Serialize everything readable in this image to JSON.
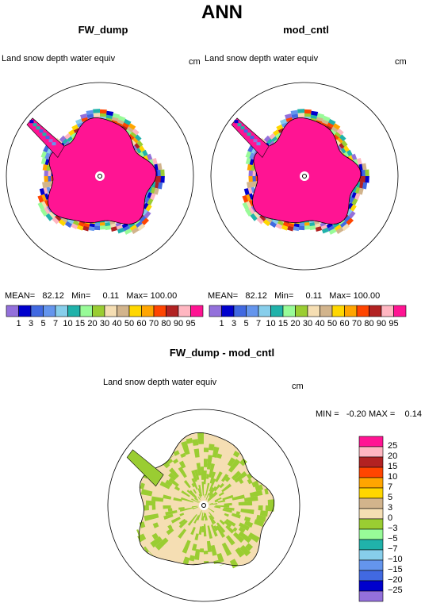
{
  "title": "ANN",
  "panels": [
    {
      "title": "FW_dump",
      "variable": "Land snow depth water equiv",
      "units": "cm",
      "mean_label": "MEAN=",
      "mean": "82.12",
      "min_label": "Min=",
      "min": "0.11",
      "max_label": "Max=",
      "max": "100.00"
    },
    {
      "title": "mod_cntl",
      "variable": "Land snow depth water equiv",
      "units": "cm",
      "mean_label": "MEAN=",
      "mean": "82.12",
      "min_label": "Min=",
      "min": "0.11",
      "max_label": "Max=",
      "max": "100.00"
    }
  ],
  "diff_panel": {
    "title": "FW_dump - mod_cntl",
    "variable": "Land snow depth water equiv",
    "units": "cm",
    "min_label": "MIN =",
    "min": "-0.20",
    "max_label": "MAX =",
    "max": "0.14"
  },
  "chart_data": [
    {
      "type": "heatmap",
      "projection": "south-polar-stereographic",
      "title": "FW_dump",
      "description_fields": {
        "mean": 82.12,
        "min": 0.11,
        "max": 100.0
      },
      "colorbar_levels": [
        "1",
        "3",
        "5",
        "7",
        "10",
        "15",
        "20",
        "30",
        "40",
        "50",
        "60",
        "70",
        "80",
        "90",
        "95"
      ],
      "colorbar_colors": [
        "#9370db",
        "#0000cd",
        "#4169e1",
        "#6495ed",
        "#87ceeb",
        "#20b2aa",
        "#98fb98",
        "#9acd32",
        "#f5deb3",
        "#d2b48c",
        "#ffd700",
        "#ffa500",
        "#ff4500",
        "#b22222",
        "#ffb6c1",
        "#ff1493"
      ]
    },
    {
      "type": "heatmap",
      "projection": "south-polar-stereographic",
      "title": "mod_cntl",
      "description_fields": {
        "mean": 82.12,
        "min": 0.11,
        "max": 100.0
      },
      "colorbar_levels": [
        "1",
        "3",
        "5",
        "7",
        "10",
        "15",
        "20",
        "30",
        "40",
        "50",
        "60",
        "70",
        "80",
        "90",
        "95"
      ],
      "colorbar_colors": [
        "#9370db",
        "#0000cd",
        "#4169e1",
        "#6495ed",
        "#87ceeb",
        "#20b2aa",
        "#98fb98",
        "#9acd32",
        "#f5deb3",
        "#d2b48c",
        "#ffd700",
        "#ffa500",
        "#ff4500",
        "#b22222",
        "#ffb6c1",
        "#ff1493"
      ]
    },
    {
      "type": "heatmap",
      "projection": "south-polar-stereographic",
      "title": "FW_dump - mod_cntl",
      "description_fields": {
        "min": -0.2,
        "max": 0.14
      },
      "colorbar_levels": [
        "25",
        "20",
        "15",
        "10",
        "7",
        "5",
        "3",
        "0",
        "−3",
        "−5",
        "−7",
        "−10",
        "−15",
        "−20",
        "−25"
      ],
      "colorbar_colors": [
        "#ff1493",
        "#ffb6c1",
        "#b22222",
        "#ff4500",
        "#ffa500",
        "#ffd700",
        "#d2b48c",
        "#f5deb3",
        "#9acd32",
        "#98fb98",
        "#20b2aa",
        "#87ceeb",
        "#6495ed",
        "#4169e1",
        "#0000cd",
        "#9370db"
      ]
    }
  ]
}
